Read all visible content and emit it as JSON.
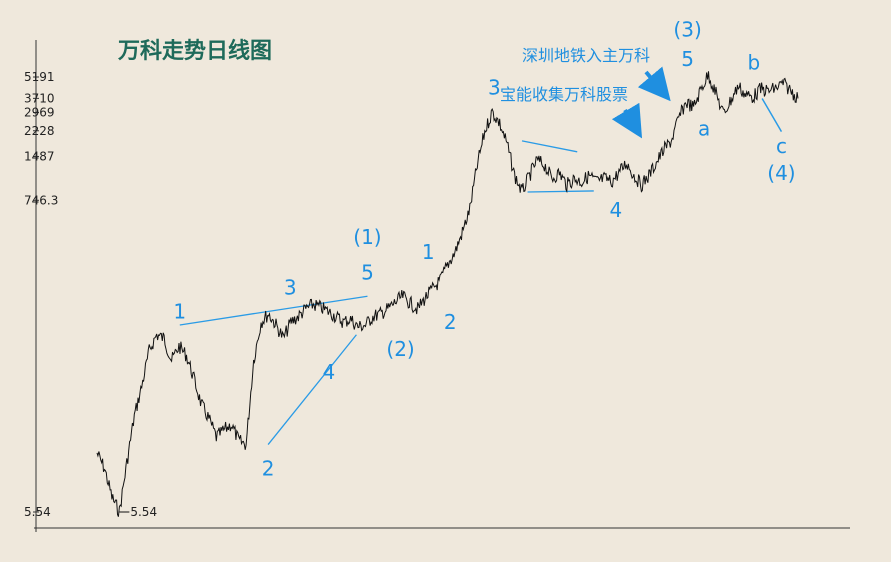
{
  "chart_data": {
    "type": "line",
    "title": "万科走势日线图",
    "xlabel": "",
    "ylabel": "",
    "y_scale": "log",
    "ylim": [
      5.54,
      8000
    ],
    "grid": false,
    "y_ticks": [
      {
        "value": 5191,
        "label": "5191"
      },
      {
        "value": 3710,
        "label": "3710"
      },
      {
        "value": 2969,
        "label": "2969"
      },
      {
        "value": 2228,
        "label": "2228"
      },
      {
        "value": 1487,
        "label": "1487"
      },
      {
        "value": 746.3,
        "label": "746.3"
      },
      {
        "value": 5.54,
        "label": "5.54"
      }
    ],
    "low_marker": {
      "value": 5.54,
      "label": "5.54"
    },
    "series": [
      {
        "values": [
          14,
          11,
          7,
          5.54,
          12,
          25,
          40,
          70,
          90,
          85,
          60,
          75,
          65,
          45,
          30,
          24,
          18,
          20,
          22,
          17,
          16,
          60,
          110,
          125,
          105,
          85,
          110,
          120,
          135,
          145,
          138,
          130,
          120,
          110,
          115,
          102,
          105,
          120,
          125,
          135,
          150,
          165,
          148,
          135,
          160,
          185,
          210,
          270,
          330,
          450,
          650,
          1300,
          2200,
          3000,
          2500,
          1800,
          1100,
          850,
          1100,
          1400,
          1300,
          1050,
          1150,
          950,
          1050,
          1000,
          1100,
          1000,
          1050,
          1000,
          1150,
          1350,
          1100,
          950,
          1100,
          1350,
          1650,
          1900,
          2700,
          3500,
          3200,
          4300,
          5400,
          4000,
          2900,
          3600,
          4500,
          3900,
          3800,
          4300,
          4150,
          4350,
          4700,
          4200,
          3700
        ]
      }
    ],
    "trendlines": [
      {
        "from": [
          15,
          105
        ],
        "to": [
          49,
          165
        ]
      },
      {
        "from": [
          31,
          16
        ],
        "to": [
          47,
          90
        ]
      },
      {
        "from": [
          77,
          1900
        ],
        "to": [
          87,
          1600
        ]
      },
      {
        "from": [
          78,
          850
        ],
        "to": [
          90,
          865
        ]
      }
    ],
    "wave_labels": [
      {
        "text": "1",
        "x": 15,
        "y": 130
      },
      {
        "text": "2",
        "x": 31,
        "y": 11
      },
      {
        "text": "3",
        "x": 35,
        "y": 190
      },
      {
        "text": "4",
        "x": 42,
        "y": 50
      },
      {
        "text": "5",
        "x": 49,
        "y": 240
      },
      {
        "text": "(1)",
        "x": 49,
        "y": 420
      },
      {
        "text": "(2)",
        "x": 55,
        "y": 72
      },
      {
        "text": "1",
        "x": 60,
        "y": 330
      },
      {
        "text": "2",
        "x": 64,
        "y": 110
      },
      {
        "text": "3",
        "x": 72,
        "y": 4400
      },
      {
        "text": "4",
        "x": 94,
        "y": 640
      },
      {
        "text": "5",
        "x": 107,
        "y": 6900
      },
      {
        "text": "(3)",
        "x": 107,
        "y": 11000
      },
      {
        "text": "a",
        "x": 110,
        "y": 2300
      },
      {
        "text": "b",
        "x": 119,
        "y": 6500
      },
      {
        "text": "c",
        "x": 124,
        "y": 1750
      },
      {
        "text": "(4)",
        "x": 124,
        "y": 1150
      }
    ],
    "annotations": [
      {
        "text": "深圳地铁入主万科",
        "arrow_to": [
          103,
          3900
        ]
      },
      {
        "text": "宝能收集万科股票",
        "arrow_to": [
          98,
          2200
        ]
      }
    ]
  }
}
